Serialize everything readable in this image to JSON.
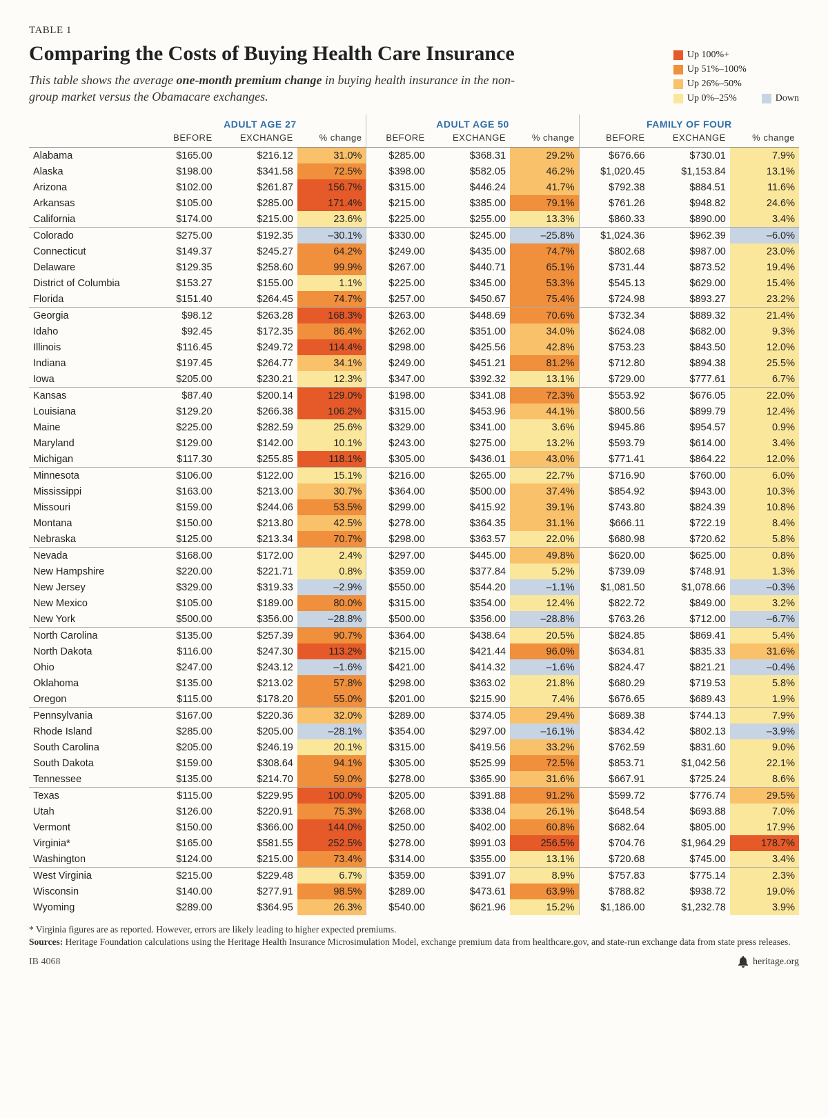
{
  "table_label": "TABLE 1",
  "title": "Comparing the Costs of Buying Health Care Insurance",
  "subtitle_pre": "This table shows the average ",
  "subtitle_bold": "one-month premium change",
  "subtitle_post": " in buying health insurance in the non-group market versus the Obamacare exchanges.",
  "legend": [
    {
      "label": "Up 100%+",
      "color": "#e55a28"
    },
    {
      "label": "Up 51%–100%",
      "color": "#f08f3c"
    },
    {
      "label": "Up 26%–50%",
      "color": "#f9c16a"
    },
    {
      "label": "Up 0%–25%",
      "color": "#fbe79b"
    },
    {
      "label": "Down",
      "color": "#c7d4e3"
    }
  ],
  "group_headers": [
    "ADULT AGE 27",
    "ADULT AGE 50",
    "FAMILY OF FOUR"
  ],
  "sub_headers": [
    "BEFORE",
    "EXCHANGE",
    "% change"
  ],
  "colors": {
    "up100": "#e55a28",
    "up51": "#f08f3c",
    "up26": "#f9c16a",
    "up0": "#fbe79b",
    "down": "#c7d4e3"
  },
  "rows": [
    {
      "s": "Alabama",
      "a": [
        "$165.00",
        "$216.12",
        "31.0%"
      ],
      "b": [
        "$285.00",
        "$368.31",
        "29.2%"
      ],
      "c": [
        "$676.66",
        "$730.01",
        "7.9%"
      ]
    },
    {
      "s": "Alaska",
      "a": [
        "$198.00",
        "$341.58",
        "72.5%"
      ],
      "b": [
        "$398.00",
        "$582.05",
        "46.2%"
      ],
      "c": [
        "$1,020.45",
        "$1,153.84",
        "13.1%"
      ]
    },
    {
      "s": "Arizona",
      "a": [
        "$102.00",
        "$261.87",
        "156.7%"
      ],
      "b": [
        "$315.00",
        "$446.24",
        "41.7%"
      ],
      "c": [
        "$792.38",
        "$884.51",
        "11.6%"
      ]
    },
    {
      "s": "Arkansas",
      "a": [
        "$105.00",
        "$285.00",
        "171.4%"
      ],
      "b": [
        "$215.00",
        "$385.00",
        "79.1%"
      ],
      "c": [
        "$761.26",
        "$948.82",
        "24.6%"
      ]
    },
    {
      "s": "California",
      "a": [
        "$174.00",
        "$215.00",
        "23.6%"
      ],
      "b": [
        "$225.00",
        "$255.00",
        "13.3%"
      ],
      "c": [
        "$860.33",
        "$890.00",
        "3.4%"
      ],
      "sep": true
    },
    {
      "s": "Colorado",
      "a": [
        "$275.00",
        "$192.35",
        "–30.1%"
      ],
      "b": [
        "$330.00",
        "$245.00",
        "–25.8%"
      ],
      "c": [
        "$1,024.36",
        "$962.39",
        "–6.0%"
      ]
    },
    {
      "s": "Connecticut",
      "a": [
        "$149.37",
        "$245.27",
        "64.2%"
      ],
      "b": [
        "$249.00",
        "$435.00",
        "74.7%"
      ],
      "c": [
        "$802.68",
        "$987.00",
        "23.0%"
      ]
    },
    {
      "s": "Delaware",
      "a": [
        "$129.35",
        "$258.60",
        "99.9%"
      ],
      "b": [
        "$267.00",
        "$440.71",
        "65.1%"
      ],
      "c": [
        "$731.44",
        "$873.52",
        "19.4%"
      ]
    },
    {
      "s": "District of Columbia",
      "a": [
        "$153.27",
        "$155.00",
        "1.1%"
      ],
      "b": [
        "$225.00",
        "$345.00",
        "53.3%"
      ],
      "c": [
        "$545.13",
        "$629.00",
        "15.4%"
      ]
    },
    {
      "s": "Florida",
      "a": [
        "$151.40",
        "$264.45",
        "74.7%"
      ],
      "b": [
        "$257.00",
        "$450.67",
        "75.4%"
      ],
      "c": [
        "$724.98",
        "$893.27",
        "23.2%"
      ],
      "sep": true
    },
    {
      "s": "Georgia",
      "a": [
        "$98.12",
        "$263.28",
        "168.3%"
      ],
      "b": [
        "$263.00",
        "$448.69",
        "70.6%"
      ],
      "c": [
        "$732.34",
        "$889.32",
        "21.4%"
      ]
    },
    {
      "s": "Idaho",
      "a": [
        "$92.45",
        "$172.35",
        "86.4%"
      ],
      "b": [
        "$262.00",
        "$351.00",
        "34.0%"
      ],
      "c": [
        "$624.08",
        "$682.00",
        "9.3%"
      ]
    },
    {
      "s": "Illinois",
      "a": [
        "$116.45",
        "$249.72",
        "114.4%"
      ],
      "b": [
        "$298.00",
        "$425.56",
        "42.8%"
      ],
      "c": [
        "$753.23",
        "$843.50",
        "12.0%"
      ]
    },
    {
      "s": "Indiana",
      "a": [
        "$197.45",
        "$264.77",
        "34.1%"
      ],
      "b": [
        "$249.00",
        "$451.21",
        "81.2%"
      ],
      "c": [
        "$712.80",
        "$894.38",
        "25.5%"
      ]
    },
    {
      "s": "Iowa",
      "a": [
        "$205.00",
        "$230.21",
        "12.3%"
      ],
      "b": [
        "$347.00",
        "$392.32",
        "13.1%"
      ],
      "c": [
        "$729.00",
        "$777.61",
        "6.7%"
      ],
      "sep": true
    },
    {
      "s": "Kansas",
      "a": [
        "$87.40",
        "$200.14",
        "129.0%"
      ],
      "b": [
        "$198.00",
        "$341.08",
        "72.3%"
      ],
      "c": [
        "$553.92",
        "$676.05",
        "22.0%"
      ]
    },
    {
      "s": "Louisiana",
      "a": [
        "$129.20",
        "$266.38",
        "106.2%"
      ],
      "b": [
        "$315.00",
        "$453.96",
        "44.1%"
      ],
      "c": [
        "$800.56",
        "$899.79",
        "12.4%"
      ]
    },
    {
      "s": "Maine",
      "a": [
        "$225.00",
        "$282.59",
        "25.6%"
      ],
      "b": [
        "$329.00",
        "$341.00",
        "3.6%"
      ],
      "c": [
        "$945.86",
        "$954.57",
        "0.9%"
      ]
    },
    {
      "s": "Maryland",
      "a": [
        "$129.00",
        "$142.00",
        "10.1%"
      ],
      "b": [
        "$243.00",
        "$275.00",
        "13.2%"
      ],
      "c": [
        "$593.79",
        "$614.00",
        "3.4%"
      ]
    },
    {
      "s": "Michigan",
      "a": [
        "$117.30",
        "$255.85",
        "118.1%"
      ],
      "b": [
        "$305.00",
        "$436.01",
        "43.0%"
      ],
      "c": [
        "$771.41",
        "$864.22",
        "12.0%"
      ],
      "sep": true
    },
    {
      "s": "Minnesota",
      "a": [
        "$106.00",
        "$122.00",
        "15.1%"
      ],
      "b": [
        "$216.00",
        "$265.00",
        "22.7%"
      ],
      "c": [
        "$716.90",
        "$760.00",
        "6.0%"
      ]
    },
    {
      "s": "Mississippi",
      "a": [
        "$163.00",
        "$213.00",
        "30.7%"
      ],
      "b": [
        "$364.00",
        "$500.00",
        "37.4%"
      ],
      "c": [
        "$854.92",
        "$943.00",
        "10.3%"
      ]
    },
    {
      "s": "Missouri",
      "a": [
        "$159.00",
        "$244.06",
        "53.5%"
      ],
      "b": [
        "$299.00",
        "$415.92",
        "39.1%"
      ],
      "c": [
        "$743.80",
        "$824.39",
        "10.8%"
      ]
    },
    {
      "s": "Montana",
      "a": [
        "$150.00",
        "$213.80",
        "42.5%"
      ],
      "b": [
        "$278.00",
        "$364.35",
        "31.1%"
      ],
      "c": [
        "$666.11",
        "$722.19",
        "8.4%"
      ]
    },
    {
      "s": "Nebraska",
      "a": [
        "$125.00",
        "$213.34",
        "70.7%"
      ],
      "b": [
        "$298.00",
        "$363.57",
        "22.0%"
      ],
      "c": [
        "$680.98",
        "$720.62",
        "5.8%"
      ],
      "sep": true
    },
    {
      "s": "Nevada",
      "a": [
        "$168.00",
        "$172.00",
        "2.4%"
      ],
      "b": [
        "$297.00",
        "$445.00",
        "49.8%"
      ],
      "c": [
        "$620.00",
        "$625.00",
        "0.8%"
      ]
    },
    {
      "s": "New Hampshire",
      "a": [
        "$220.00",
        "$221.71",
        "0.8%"
      ],
      "b": [
        "$359.00",
        "$377.84",
        "5.2%"
      ],
      "c": [
        "$739.09",
        "$748.91",
        "1.3%"
      ]
    },
    {
      "s": "New Jersey",
      "a": [
        "$329.00",
        "$319.33",
        "–2.9%"
      ],
      "b": [
        "$550.00",
        "$544.20",
        "–1.1%"
      ],
      "c": [
        "$1,081.50",
        "$1,078.66",
        "–0.3%"
      ]
    },
    {
      "s": "New Mexico",
      "a": [
        "$105.00",
        "$189.00",
        "80.0%"
      ],
      "b": [
        "$315.00",
        "$354.00",
        "12.4%"
      ],
      "c": [
        "$822.72",
        "$849.00",
        "3.2%"
      ]
    },
    {
      "s": "New York",
      "a": [
        "$500.00",
        "$356.00",
        "–28.8%"
      ],
      "b": [
        "$500.00",
        "$356.00",
        "–28.8%"
      ],
      "c": [
        "$763.26",
        "$712.00",
        "–6.7%"
      ],
      "sep": true
    },
    {
      "s": "North Carolina",
      "a": [
        "$135.00",
        "$257.39",
        "90.7%"
      ],
      "b": [
        "$364.00",
        "$438.64",
        "20.5%"
      ],
      "c": [
        "$824.85",
        "$869.41",
        "5.4%"
      ]
    },
    {
      "s": "North Dakota",
      "a": [
        "$116.00",
        "$247.30",
        "113.2%"
      ],
      "b": [
        "$215.00",
        "$421.44",
        "96.0%"
      ],
      "c": [
        "$634.81",
        "$835.33",
        "31.6%"
      ]
    },
    {
      "s": "Ohio",
      "a": [
        "$247.00",
        "$243.12",
        "–1.6%"
      ],
      "b": [
        "$421.00",
        "$414.32",
        "–1.6%"
      ],
      "c": [
        "$824.47",
        "$821.21",
        "–0.4%"
      ]
    },
    {
      "s": "Oklahoma",
      "a": [
        "$135.00",
        "$213.02",
        "57.8%"
      ],
      "b": [
        "$298.00",
        "$363.02",
        "21.8%"
      ],
      "c": [
        "$680.29",
        "$719.53",
        "5.8%"
      ]
    },
    {
      "s": "Oregon",
      "a": [
        "$115.00",
        "$178.20",
        "55.0%"
      ],
      "b": [
        "$201.00",
        "$215.90",
        "7.4%"
      ],
      "c": [
        "$676.65",
        "$689.43",
        "1.9%"
      ],
      "sep": true
    },
    {
      "s": "Pennsylvania",
      "a": [
        "$167.00",
        "$220.36",
        "32.0%"
      ],
      "b": [
        "$289.00",
        "$374.05",
        "29.4%"
      ],
      "c": [
        "$689.38",
        "$744.13",
        "7.9%"
      ]
    },
    {
      "s": "Rhode Island",
      "a": [
        "$285.00",
        "$205.00",
        "–28.1%"
      ],
      "b": [
        "$354.00",
        "$297.00",
        "–16.1%"
      ],
      "c": [
        "$834.42",
        "$802.13",
        "–3.9%"
      ]
    },
    {
      "s": "South Carolina",
      "a": [
        "$205.00",
        "$246.19",
        "20.1%"
      ],
      "b": [
        "$315.00",
        "$419.56",
        "33.2%"
      ],
      "c": [
        "$762.59",
        "$831.60",
        "9.0%"
      ]
    },
    {
      "s": "South Dakota",
      "a": [
        "$159.00",
        "$308.64",
        "94.1%"
      ],
      "b": [
        "$305.00",
        "$525.99",
        "72.5%"
      ],
      "c": [
        "$853.71",
        "$1,042.56",
        "22.1%"
      ]
    },
    {
      "s": "Tennessee",
      "a": [
        "$135.00",
        "$214.70",
        "59.0%"
      ],
      "b": [
        "$278.00",
        "$365.90",
        "31.6%"
      ],
      "c": [
        "$667.91",
        "$725.24",
        "8.6%"
      ],
      "sep": true
    },
    {
      "s": "Texas",
      "a": [
        "$115.00",
        "$229.95",
        "100.0%"
      ],
      "b": [
        "$205.00",
        "$391.88",
        "91.2%"
      ],
      "c": [
        "$599.72",
        "$776.74",
        "29.5%"
      ]
    },
    {
      "s": "Utah",
      "a": [
        "$126.00",
        "$220.91",
        "75.3%"
      ],
      "b": [
        "$268.00",
        "$338.04",
        "26.1%"
      ],
      "c": [
        "$648.54",
        "$693.88",
        "7.0%"
      ]
    },
    {
      "s": "Vermont",
      "a": [
        "$150.00",
        "$366.00",
        "144.0%"
      ],
      "b": [
        "$250.00",
        "$402.00",
        "60.8%"
      ],
      "c": [
        "$682.64",
        "$805.00",
        "17.9%"
      ]
    },
    {
      "s": "Virginia*",
      "a": [
        "$165.00",
        "$581.55",
        "252.5%"
      ],
      "b": [
        "$278.00",
        "$991.03",
        "256.5%"
      ],
      "c": [
        "$704.76",
        "$1,964.29",
        "178.7%"
      ]
    },
    {
      "s": "Washington",
      "a": [
        "$124.00",
        "$215.00",
        "73.4%"
      ],
      "b": [
        "$314.00",
        "$355.00",
        "13.1%"
      ],
      "c": [
        "$720.68",
        "$745.00",
        "3.4%"
      ],
      "sep": true
    },
    {
      "s": "West Virginia",
      "a": [
        "$215.00",
        "$229.48",
        "6.7%"
      ],
      "b": [
        "$359.00",
        "$391.07",
        "8.9%"
      ],
      "c": [
        "$757.83",
        "$775.14",
        "2.3%"
      ]
    },
    {
      "s": "Wisconsin",
      "a": [
        "$140.00",
        "$277.91",
        "98.5%"
      ],
      "b": [
        "$289.00",
        "$473.61",
        "63.9%"
      ],
      "c": [
        "$788.82",
        "$938.72",
        "19.0%"
      ]
    },
    {
      "s": "Wyoming",
      "a": [
        "$289.00",
        "$364.95",
        "26.3%"
      ],
      "b": [
        "$540.00",
        "$621.96",
        "15.2%"
      ],
      "c": [
        "$1,186.00",
        "$1,232.78",
        "3.9%"
      ]
    }
  ],
  "footnote1": "* Virginia figures are as reported. However, errors are likely leading to higher expected premiums.",
  "footnote2_label": "Sources:",
  "footnote2_text": " Heritage Foundation calculations using the Heritage Health Insurance Microsimulation Model, exchange premium data from healthcare.gov, and state-run exchange data from state press releases.",
  "footer_left": "IB 4068",
  "footer_right": "heritage.org"
}
